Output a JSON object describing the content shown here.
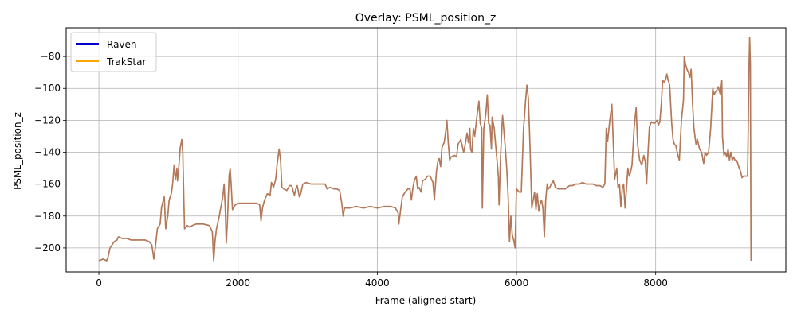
{
  "chart_data": {
    "type": "line",
    "title": "Overlay: PSML_position_z",
    "xlabel": "Frame (aligned start)",
    "ylabel": "PSML_position_z",
    "xlim": [
      -470,
      9870
    ],
    "ylim": [
      -215,
      -62
    ],
    "x_ticks": [
      0,
      2000,
      4000,
      6000,
      8000
    ],
    "y_ticks": [
      -200,
      -180,
      -160,
      -140,
      -120,
      -100,
      -80
    ],
    "x_tick_labels": [
      "0",
      "2000",
      "4000",
      "6000",
      "8000"
    ],
    "y_tick_labels": [
      "−200",
      "−180",
      "−160",
      "−140",
      "−120",
      "−100",
      "−80"
    ],
    "grid": true,
    "legend_position": "top-left",
    "series": [
      {
        "name": "Raven",
        "color": "#0000cc",
        "points": [
          [
            0,
            -208
          ],
          [
            60,
            -207
          ],
          [
            110,
            -208
          ],
          [
            130,
            -206
          ],
          [
            160,
            -200
          ],
          [
            220,
            -196
          ],
          [
            260,
            -195
          ],
          [
            280,
            -193
          ],
          [
            330,
            -194
          ],
          [
            400,
            -194
          ],
          [
            460,
            -195
          ],
          [
            560,
            -195
          ],
          [
            660,
            -195
          ],
          [
            720,
            -196
          ],
          [
            760,
            -198
          ],
          [
            780,
            -204
          ],
          [
            790,
            -207
          ],
          [
            810,
            -200
          ],
          [
            840,
            -188
          ],
          [
            880,
            -185
          ],
          [
            890,
            -180
          ],
          [
            900,
            -175
          ],
          [
            920,
            -171
          ],
          [
            940,
            -168
          ],
          [
            960,
            -188
          ],
          [
            990,
            -180
          ],
          [
            1010,
            -170
          ],
          [
            1040,
            -166
          ],
          [
            1060,
            -160
          ],
          [
            1080,
            -148
          ],
          [
            1100,
            -157
          ],
          [
            1120,
            -150
          ],
          [
            1130,
            -158
          ],
          [
            1150,
            -148
          ],
          [
            1170,
            -137
          ],
          [
            1190,
            -132
          ],
          [
            1205,
            -140
          ],
          [
            1230,
            -188
          ],
          [
            1270,
            -186
          ],
          [
            1300,
            -187
          ],
          [
            1340,
            -186
          ],
          [
            1400,
            -185
          ],
          [
            1500,
            -185
          ],
          [
            1590,
            -186
          ],
          [
            1630,
            -190
          ],
          [
            1650,
            -208
          ],
          [
            1670,
            -195
          ],
          [
            1690,
            -188
          ],
          [
            1730,
            -180
          ],
          [
            1750,
            -175
          ],
          [
            1780,
            -168
          ],
          [
            1800,
            -160
          ],
          [
            1815,
            -175
          ],
          [
            1830,
            -197
          ],
          [
            1850,
            -180
          ],
          [
            1870,
            -155
          ],
          [
            1885,
            -150
          ],
          [
            1900,
            -160
          ],
          [
            1920,
            -176
          ],
          [
            1960,
            -173
          ],
          [
            2000,
            -172
          ],
          [
            2100,
            -172
          ],
          [
            2200,
            -172
          ],
          [
            2270,
            -172
          ],
          [
            2310,
            -173
          ],
          [
            2330,
            -183
          ],
          [
            2350,
            -175
          ],
          [
            2380,
            -170
          ],
          [
            2420,
            -166
          ],
          [
            2460,
            -167
          ],
          [
            2480,
            -159
          ],
          [
            2510,
            -162
          ],
          [
            2540,
            -157
          ],
          [
            2560,
            -148
          ],
          [
            2590,
            -138
          ],
          [
            2610,
            -145
          ],
          [
            2630,
            -162
          ],
          [
            2660,
            -163
          ],
          [
            2700,
            -164
          ],
          [
            2740,
            -161
          ],
          [
            2770,
            -161
          ],
          [
            2810,
            -167
          ],
          [
            2830,
            -163
          ],
          [
            2850,
            -161
          ],
          [
            2880,
            -168
          ],
          [
            2900,
            -166
          ],
          [
            2930,
            -160
          ],
          [
            2980,
            -159
          ],
          [
            3050,
            -160
          ],
          [
            3150,
            -160
          ],
          [
            3250,
            -160
          ],
          [
            3280,
            -163
          ],
          [
            3320,
            -162
          ],
          [
            3380,
            -163
          ],
          [
            3420,
            -163
          ],
          [
            3460,
            -164
          ],
          [
            3490,
            -172
          ],
          [
            3510,
            -180
          ],
          [
            3530,
            -175
          ],
          [
            3600,
            -175
          ],
          [
            3700,
            -174
          ],
          [
            3800,
            -175
          ],
          [
            3900,
            -174
          ],
          [
            4000,
            -175
          ],
          [
            4100,
            -174
          ],
          [
            4200,
            -174
          ],
          [
            4260,
            -175
          ],
          [
            4300,
            -178
          ],
          [
            4310,
            -185
          ],
          [
            4330,
            -178
          ],
          [
            4360,
            -168
          ],
          [
            4400,
            -165
          ],
          [
            4440,
            -163
          ],
          [
            4470,
            -163
          ],
          [
            4490,
            -170
          ],
          [
            4510,
            -163
          ],
          [
            4530,
            -158
          ],
          [
            4560,
            -155
          ],
          [
            4580,
            -163
          ],
          [
            4600,
            -162
          ],
          [
            4630,
            -165
          ],
          [
            4650,
            -158
          ],
          [
            4690,
            -157
          ],
          [
            4720,
            -155
          ],
          [
            4760,
            -155
          ],
          [
            4800,
            -159
          ],
          [
            4820,
            -170
          ],
          [
            4850,
            -152
          ],
          [
            4870,
            -146
          ],
          [
            4890,
            -144
          ],
          [
            4910,
            -149
          ],
          [
            4930,
            -137
          ],
          [
            4960,
            -134
          ],
          [
            4980,
            -128
          ],
          [
            5000,
            -120
          ],
          [
            5020,
            -134
          ],
          [
            5040,
            -145
          ],
          [
            5060,
            -143
          ],
          [
            5110,
            -142
          ],
          [
            5140,
            -143
          ],
          [
            5160,
            -135
          ],
          [
            5200,
            -132
          ],
          [
            5240,
            -140
          ],
          [
            5260,
            -136
          ],
          [
            5290,
            -128
          ],
          [
            5310,
            -134
          ],
          [
            5330,
            -125
          ],
          [
            5340,
            -138
          ],
          [
            5360,
            -140
          ],
          [
            5380,
            -125
          ],
          [
            5400,
            -130
          ],
          [
            5430,
            -118
          ],
          [
            5460,
            -108
          ],
          [
            5480,
            -122
          ],
          [
            5500,
            -125
          ],
          [
            5510,
            -175
          ],
          [
            5530,
            -125
          ],
          [
            5560,
            -116
          ],
          [
            5580,
            -104
          ],
          [
            5600,
            -122
          ],
          [
            5620,
            -123
          ],
          [
            5640,
            -138
          ],
          [
            5650,
            -118
          ],
          [
            5680,
            -125
          ],
          [
            5700,
            -135
          ],
          [
            5720,
            -145
          ],
          [
            5740,
            -155
          ],
          [
            5750,
            -173
          ],
          [
            5770,
            -145
          ],
          [
            5790,
            -125
          ],
          [
            5800,
            -117
          ],
          [
            5820,
            -127
          ],
          [
            5840,
            -138
          ],
          [
            5860,
            -150
          ],
          [
            5880,
            -168
          ],
          [
            5900,
            -196
          ],
          [
            5920,
            -180
          ],
          [
            5940,
            -192
          ],
          [
            5960,
            -195
          ],
          [
            5980,
            -200
          ],
          [
            6000,
            -163
          ],
          [
            6040,
            -165
          ],
          [
            6070,
            -165
          ],
          [
            6100,
            -126
          ],
          [
            6130,
            -108
          ],
          [
            6150,
            -98
          ],
          [
            6170,
            -106
          ],
          [
            6190,
            -130
          ],
          [
            6210,
            -160
          ],
          [
            6220,
            -175
          ],
          [
            6240,
            -170
          ],
          [
            6260,
            -165
          ],
          [
            6280,
            -176
          ],
          [
            6300,
            -166
          ],
          [
            6320,
            -177
          ],
          [
            6340,
            -172
          ],
          [
            6360,
            -170
          ],
          [
            6380,
            -175
          ],
          [
            6400,
            -193
          ],
          [
            6420,
            -170
          ],
          [
            6440,
            -160
          ],
          [
            6460,
            -163
          ],
          [
            6480,
            -162
          ],
          [
            6500,
            -160
          ],
          [
            6530,
            -158
          ],
          [
            6560,
            -162
          ],
          [
            6600,
            -163
          ],
          [
            6650,
            -163
          ],
          [
            6700,
            -163
          ],
          [
            6760,
            -161
          ],
          [
            6800,
            -161
          ],
          [
            6850,
            -160
          ],
          [
            6900,
            -160
          ],
          [
            6950,
            -159
          ],
          [
            7000,
            -160
          ],
          [
            7050,
            -160
          ],
          [
            7100,
            -160
          ],
          [
            7150,
            -161
          ],
          [
            7200,
            -161
          ],
          [
            7240,
            -162
          ],
          [
            7270,
            -160
          ],
          [
            7290,
            -125
          ],
          [
            7310,
            -133
          ],
          [
            7340,
            -120
          ],
          [
            7370,
            -110
          ],
          [
            7390,
            -133
          ],
          [
            7410,
            -157
          ],
          [
            7440,
            -150
          ],
          [
            7460,
            -162
          ],
          [
            7480,
            -160
          ],
          [
            7500,
            -174
          ],
          [
            7520,
            -163
          ],
          [
            7540,
            -160
          ],
          [
            7560,
            -175
          ],
          [
            7580,
            -163
          ],
          [
            7600,
            -150
          ],
          [
            7620,
            -155
          ],
          [
            7640,
            -152
          ],
          [
            7660,
            -148
          ],
          [
            7690,
            -125
          ],
          [
            7720,
            -112
          ],
          [
            7740,
            -135
          ],
          [
            7770,
            -145
          ],
          [
            7800,
            -148
          ],
          [
            7830,
            -142
          ],
          [
            7850,
            -146
          ],
          [
            7870,
            -160
          ],
          [
            7890,
            -140
          ],
          [
            7910,
            -124
          ],
          [
            7940,
            -121
          ],
          [
            7980,
            -122
          ],
          [
            8020,
            -120
          ],
          [
            8040,
            -123
          ],
          [
            8060,
            -121
          ],
          [
            8080,
            -110
          ],
          [
            8100,
            -95
          ],
          [
            8120,
            -96
          ],
          [
            8140,
            -95
          ],
          [
            8160,
            -91
          ],
          [
            8180,
            -95
          ],
          [
            8200,
            -98
          ],
          [
            8230,
            -122
          ],
          [
            8250,
            -132
          ],
          [
            8270,
            -135
          ],
          [
            8290,
            -136
          ],
          [
            8320,
            -142
          ],
          [
            8340,
            -145
          ],
          [
            8370,
            -120
          ],
          [
            8400,
            -107
          ],
          [
            8410,
            -80
          ],
          [
            8430,
            -85
          ],
          [
            8450,
            -88
          ],
          [
            8470,
            -90
          ],
          [
            8490,
            -93
          ],
          [
            8510,
            -88
          ],
          [
            8530,
            -110
          ],
          [
            8550,
            -125
          ],
          [
            8580,
            -135
          ],
          [
            8600,
            -132
          ],
          [
            8630,
            -138
          ],
          [
            8660,
            -140
          ],
          [
            8690,
            -147
          ],
          [
            8710,
            -140
          ],
          [
            8730,
            -142
          ],
          [
            8760,
            -140
          ],
          [
            8790,
            -125
          ],
          [
            8820,
            -100
          ],
          [
            8840,
            -104
          ],
          [
            8860,
            -102
          ],
          [
            8880,
            -101
          ],
          [
            8900,
            -99
          ],
          [
            8930,
            -104
          ],
          [
            8950,
            -95
          ],
          [
            8960,
            -130
          ],
          [
            8980,
            -142
          ],
          [
            9000,
            -140
          ],
          [
            9020,
            -143
          ],
          [
            9040,
            -138
          ],
          [
            9060,
            -145
          ],
          [
            9080,
            -140
          ],
          [
            9100,
            -145
          ],
          [
            9120,
            -143
          ],
          [
            9140,
            -145
          ],
          [
            9160,
            -145
          ],
          [
            9180,
            -147
          ],
          [
            9200,
            -150
          ],
          [
            9220,
            -152
          ],
          [
            9240,
            -156
          ],
          [
            9260,
            -155
          ],
          [
            9280,
            -155
          ],
          [
            9300,
            -155
          ],
          [
            9320,
            -155
          ],
          [
            9330,
            -125
          ],
          [
            9340,
            -90
          ],
          [
            9350,
            -68
          ],
          [
            9360,
            -85
          ],
          [
            9370,
            -208
          ]
        ]
      },
      {
        "name": "TrakStar",
        "color": "#ffa500",
        "points": []
      }
    ],
    "rendered_color": "#b07860"
  }
}
